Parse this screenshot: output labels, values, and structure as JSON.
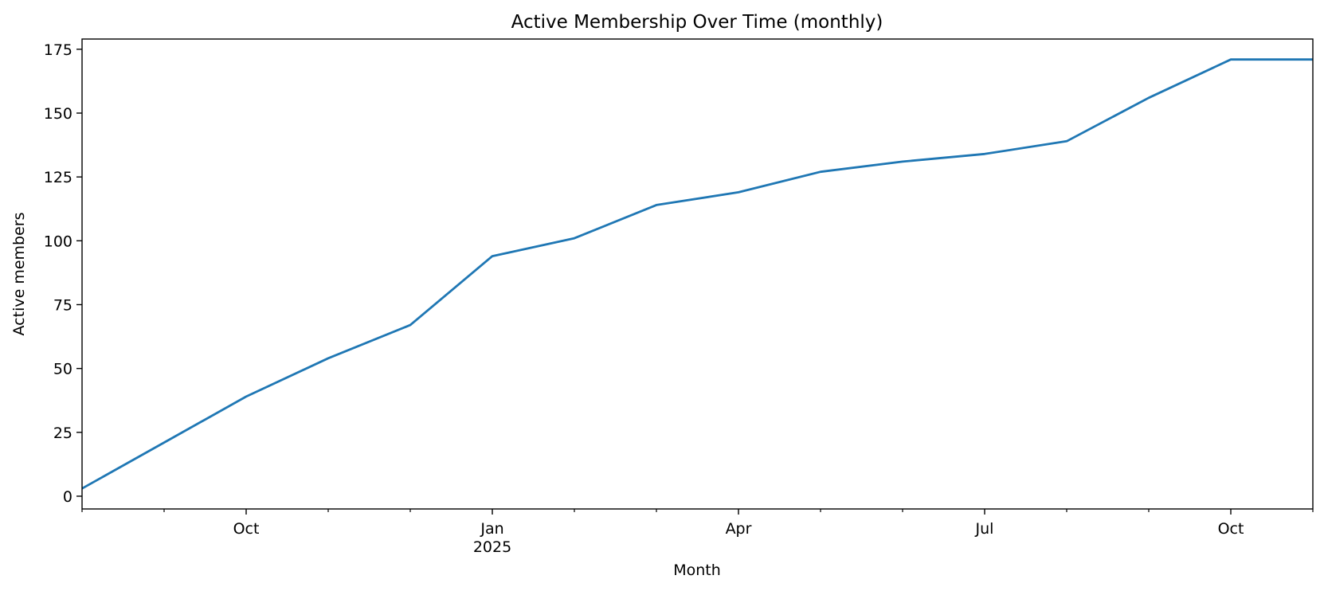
{
  "chart_data": {
    "type": "line",
    "title": "Active Membership Over Time (monthly)",
    "xlabel": "Month",
    "ylabel": "Active members",
    "x": [
      "2024-08",
      "2024-09",
      "2024-10",
      "2024-11",
      "2024-12",
      "2025-01",
      "2025-02",
      "2025-03",
      "2025-04",
      "2025-05",
      "2025-06",
      "2025-07",
      "2025-08",
      "2025-09",
      "2025-10",
      "2025-11"
    ],
    "series": [
      {
        "values": [
          3,
          21,
          39,
          54,
          67,
          94,
          101,
          114,
          119,
          127,
          131,
          134,
          139,
          156,
          171,
          171
        ],
        "color": "#1f77b4"
      }
    ],
    "ylim": [
      -5,
      179
    ],
    "yticks": [
      0,
      25,
      50,
      75,
      100,
      125,
      150,
      175
    ],
    "xlim": [
      "2024-08",
      "2025-11"
    ],
    "xticks_major": [
      {
        "x": "2024-10",
        "label": "Oct",
        "sublabel": ""
      },
      {
        "x": "2025-01",
        "label": "Jan",
        "sublabel": "2025"
      },
      {
        "x": "2025-04",
        "label": "Apr",
        "sublabel": ""
      },
      {
        "x": "2025-07",
        "label": "Jul",
        "sublabel": ""
      },
      {
        "x": "2025-10",
        "label": "Oct",
        "sublabel": ""
      }
    ],
    "xticks_minor": [
      "2024-08",
      "2024-09",
      "2024-11",
      "2024-12",
      "2025-02",
      "2025-03",
      "2025-05",
      "2025-06",
      "2025-08",
      "2025-09",
      "2025-11"
    ],
    "grid": false,
    "legend": "none"
  }
}
